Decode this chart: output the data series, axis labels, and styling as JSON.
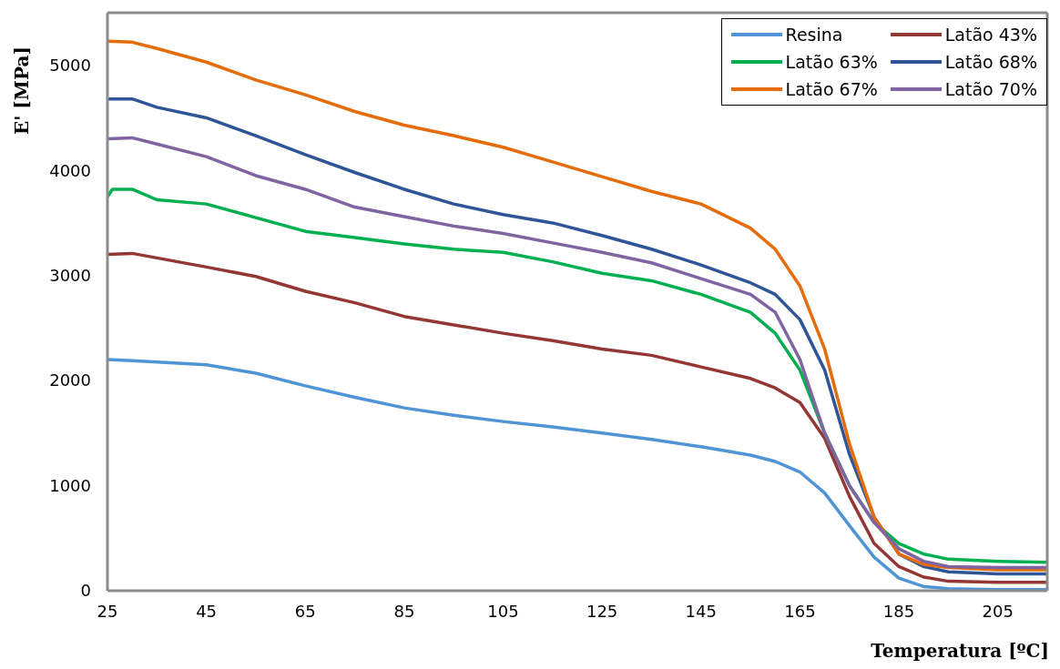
{
  "chart_data": {
    "type": "line",
    "xlabel": "Temperatura [ºC]",
    "ylabel": "E' [MPa]",
    "xlim": [
      25,
      215
    ],
    "xticks": [
      25,
      45,
      65,
      85,
      105,
      125,
      145,
      165,
      185,
      205
    ],
    "ylim": [
      0,
      5500
    ],
    "yticks": [
      0,
      1000,
      2000,
      3000,
      4000,
      5000
    ],
    "legend": "top right",
    "marker": "none",
    "line_style": "solid",
    "series": [
      {
        "name": "Resina",
        "color": "#4f94d6",
        "x": [
          25,
          30,
          45,
          55,
          65,
          75,
          85,
          95,
          105,
          115,
          125,
          135,
          145,
          155,
          160,
          165,
          170,
          175,
          180,
          185,
          190,
          195,
          205,
          215
        ],
        "values": [
          2200,
          2190,
          2150,
          2070,
          1950,
          1840,
          1740,
          1670,
          1610,
          1560,
          1500,
          1440,
          1370,
          1290,
          1230,
          1130,
          930,
          620,
          320,
          120,
          40,
          20,
          10,
          10
        ]
      },
      {
        "name": "Latão 43%",
        "color": "#943634",
        "x": [
          25,
          30,
          45,
          55,
          65,
          75,
          85,
          95,
          105,
          115,
          125,
          135,
          145,
          155,
          160,
          165,
          170,
          175,
          180,
          185,
          190,
          195,
          205,
          215
        ],
        "values": [
          3200,
          3210,
          3080,
          2990,
          2850,
          2740,
          2610,
          2530,
          2450,
          2380,
          2300,
          2240,
          2130,
          2020,
          1930,
          1790,
          1450,
          900,
          450,
          230,
          130,
          90,
          80,
          80
        ]
      },
      {
        "name": "Latão 63%",
        "color": "#00b050",
        "x": [
          25,
          26,
          30,
          35,
          45,
          55,
          65,
          75,
          85,
          95,
          105,
          115,
          125,
          135,
          145,
          155,
          160,
          165,
          170,
          175,
          180,
          185,
          190,
          195,
          205,
          215
        ],
        "values": [
          3750,
          3820,
          3820,
          3720,
          3680,
          3550,
          3420,
          3360,
          3300,
          3250,
          3220,
          3130,
          3020,
          2950,
          2820,
          2650,
          2450,
          2100,
          1500,
          1000,
          650,
          450,
          350,
          300,
          280,
          270
        ]
      },
      {
        "name": "Latão 68%",
        "color": "#2f5597",
        "x": [
          25,
          30,
          35,
          45,
          55,
          65,
          75,
          85,
          95,
          105,
          115,
          125,
          135,
          145,
          155,
          160,
          165,
          170,
          175,
          180,
          185,
          190,
          195,
          205,
          215
        ],
        "values": [
          4680,
          4680,
          4600,
          4500,
          4330,
          4150,
          3980,
          3820,
          3680,
          3580,
          3500,
          3380,
          3250,
          3100,
          2930,
          2820,
          2580,
          2100,
          1300,
          700,
          350,
          230,
          180,
          160,
          160
        ]
      },
      {
        "name": "Latão 67%",
        "color": "#e46c0a",
        "x": [
          25,
          30,
          35,
          45,
          55,
          65,
          75,
          85,
          95,
          105,
          115,
          125,
          135,
          145,
          155,
          160,
          165,
          170,
          175,
          180,
          185,
          190,
          195,
          205,
          215
        ],
        "values": [
          5230,
          5220,
          5160,
          5030,
          4860,
          4720,
          4560,
          4430,
          4330,
          4220,
          4080,
          3940,
          3800,
          3680,
          3450,
          3250,
          2900,
          2300,
          1400,
          700,
          350,
          250,
          220,
          200,
          200
        ]
      },
      {
        "name": "Latão 70%",
        "color": "#8064a2",
        "x": [
          25,
          30,
          35,
          45,
          55,
          65,
          75,
          85,
          95,
          105,
          115,
          125,
          135,
          145,
          155,
          160,
          165,
          170,
          175,
          180,
          185,
          190,
          195,
          205,
          215
        ],
        "values": [
          4300,
          4310,
          4250,
          4130,
          3950,
          3820,
          3650,
          3560,
          3470,
          3400,
          3310,
          3220,
          3120,
          2970,
          2820,
          2650,
          2200,
          1500,
          1000,
          650,
          400,
          280,
          230,
          220,
          220
        ]
      }
    ]
  }
}
